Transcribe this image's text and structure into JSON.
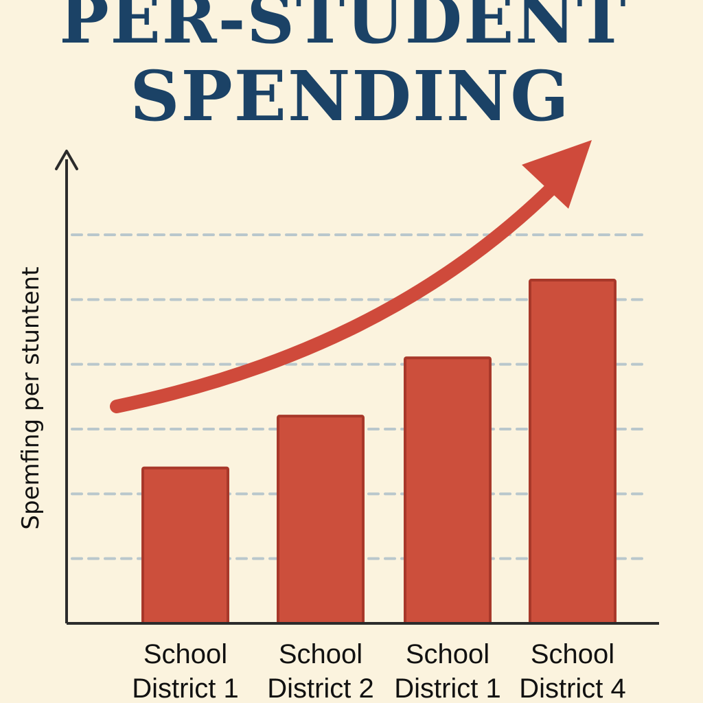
{
  "chart_data": {
    "type": "bar",
    "title_lines": [
      "PER-STUDENT",
      "SPENDING"
    ],
    "ylabel": "Spemfing per stuntent",
    "xlabel": "",
    "categories": [
      [
        "School",
        "District 1"
      ],
      [
        "School",
        "District 2"
      ],
      [
        "School",
        "District 1"
      ],
      [
        "School",
        "District 4"
      ]
    ],
    "values": [
      2.4,
      3.2,
      4.1,
      5.3
    ],
    "ylim": [
      0,
      6.7
    ],
    "gridlines": [
      1,
      2,
      3,
      4,
      5,
      6
    ],
    "grid": true,
    "trend_arrow": true,
    "colors": {
      "background": "#fbf3de",
      "bar": "#cc4f3c",
      "bar_edge": "#a8382a",
      "arrow": "#cf4a3b",
      "title": "#1b4266",
      "grid": "#b9c7cc",
      "axis": "#2b2b2b"
    }
  }
}
